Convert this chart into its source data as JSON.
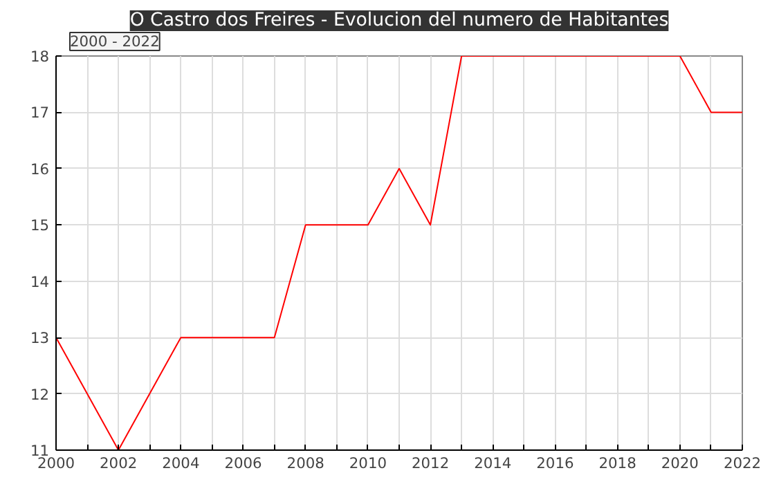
{
  "chart_data": {
    "type": "line",
    "title": "O Castro dos Freires - Evolucion del numero de Habitantes",
    "annotations": [
      "2000 - 2022"
    ],
    "x": [
      2000,
      2001,
      2002,
      2003,
      2004,
      2005,
      2006,
      2007,
      2008,
      2009,
      2010,
      2011,
      2012,
      2013,
      2014,
      2015,
      2016,
      2017,
      2018,
      2019,
      2020,
      2021,
      2022
    ],
    "series": [
      {
        "color": "#ff0000",
        "values": [
          13,
          12,
          11,
          12,
          13,
          13,
          13,
          13,
          15,
          15,
          15,
          16,
          15,
          18,
          18,
          18,
          18,
          18,
          18,
          18,
          18,
          17,
          17
        ]
      }
    ],
    "xlim": [
      2000,
      2022
    ],
    "xticks": [
      2000,
      {
        "value": 2001,
        "label": null
      },
      2002,
      {
        "value": 2003,
        "label": null
      },
      2004,
      {
        "value": 2005,
        "label": null
      },
      2006,
      {
        "value": 2007,
        "label": null
      },
      2008,
      {
        "value": 2009,
        "label": null
      },
      2010,
      {
        "value": 2011,
        "label": null
      },
      2012,
      {
        "value": 2013,
        "label": null
      },
      2014,
      {
        "value": 2015,
        "label": null
      },
      2016,
      {
        "value": 2017,
        "label": null
      },
      2018,
      {
        "value": 2019,
        "label": null
      },
      2020,
      {
        "value": 2021,
        "label": null
      },
      2022
    ],
    "ylim": [
      11,
      18
    ],
    "yticks": [
      11,
      12,
      13,
      14,
      15,
      16,
      17,
      18
    ],
    "grid": true,
    "marker": "none",
    "line_style": "solid"
  }
}
